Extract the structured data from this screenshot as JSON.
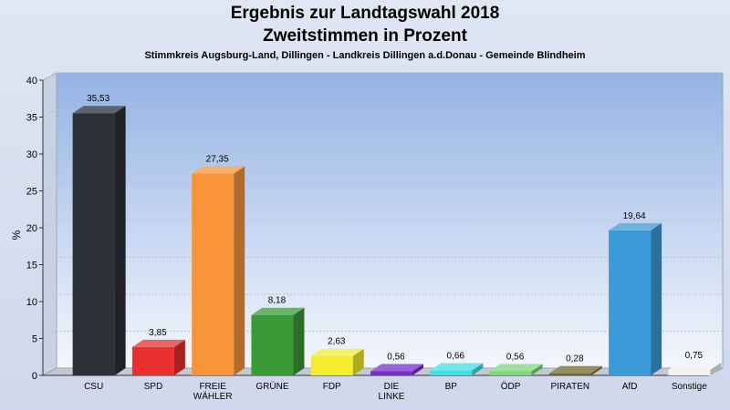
{
  "colors": {
    "background": "#d6deef",
    "plot_top": "#93b3e3",
    "plot_bottom": "#f4f7fc"
  },
  "chart_data": {
    "type": "bar",
    "title": "Ergebnis zur Landtagswahl 2018",
    "subtitle_line": "Zweitstimmen in Prozent",
    "subtitle": "Stimmkreis Augsburg-Land, Dillingen - Landkreis Dillingen a.d.Donau - Gemeinde Blindheim",
    "ylabel": "%",
    "ylim": [
      0,
      40
    ],
    "yticks": [
      0,
      5,
      10,
      15,
      20,
      25,
      30,
      35,
      40
    ],
    "grid": true,
    "categories": [
      "CSU",
      "SPD",
      "FREIE WÄHLER",
      "GRÜNE",
      "FDP",
      "DIE LINKE",
      "BP",
      "ÖDP",
      "PIRATEN",
      "AfD",
      "Sonstige"
    ],
    "category_lines": [
      [
        "CSU"
      ],
      [
        "SPD"
      ],
      [
        "FREIE",
        "WÄHLER"
      ],
      [
        "GRÜNE"
      ],
      [
        "FDP"
      ],
      [
        "DIE",
        "LINKE"
      ],
      [
        "BP"
      ],
      [
        "ÖDP"
      ],
      [
        "PIRATEN"
      ],
      [
        "AfD"
      ],
      [
        "Sonstige"
      ]
    ],
    "values": [
      35.53,
      3.85,
      27.35,
      8.18,
      2.63,
      0.56,
      0.66,
      0.56,
      0.28,
      19.64,
      0.75
    ],
    "value_labels": [
      "35,53",
      "3,85",
      "27,35",
      "8,18",
      "2,63",
      "0,56",
      "0,66",
      "0,56",
      "0,28",
      "19,64",
      "0,75"
    ],
    "bar_colors": [
      "#2b2f36",
      "#e8302e",
      "#f7943a",
      "#3a9a38",
      "#f2ee2e",
      "#7a2fcc",
      "#3ee0e6",
      "#7fd67b",
      "#6e6930",
      "#3a9bd6",
      "#f2f2f2"
    ]
  }
}
